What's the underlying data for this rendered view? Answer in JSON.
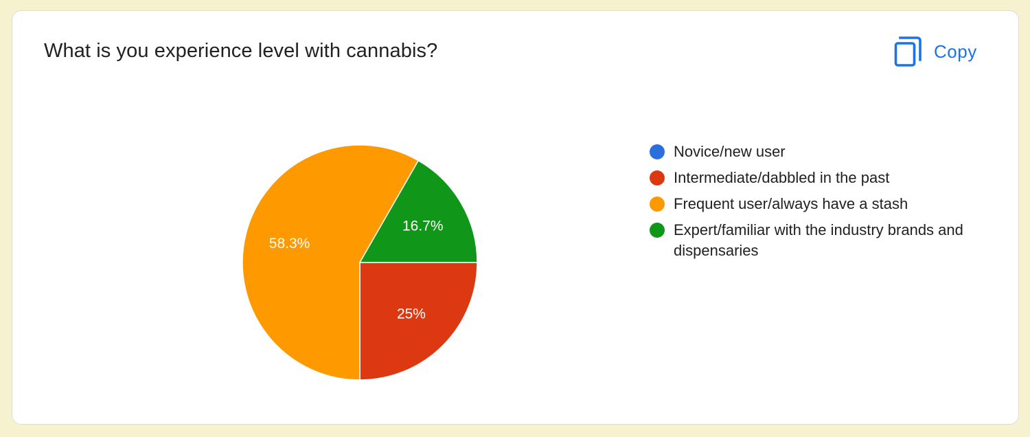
{
  "card": {
    "title": "What is you experience level with cannabis?",
    "copy_label": "Copy",
    "copy_icon": "copy-icon"
  },
  "chart_data": {
    "type": "pie",
    "categories": [
      "Novice/new user",
      "Intermediate/dabbled in the past",
      "Frequent user/always have a stash",
      "Expert/familiar with the industry brands and dispensaries"
    ],
    "values": [
      0,
      25,
      58.3,
      16.7
    ],
    "value_labels": [
      "",
      "25%",
      "58.3%",
      "16.7%"
    ],
    "colors": [
      "#2a6fdb",
      "#dc3912",
      "#ff9900",
      "#109618"
    ],
    "legend_position": "right",
    "title": "What is you experience level with cannabis?"
  }
}
